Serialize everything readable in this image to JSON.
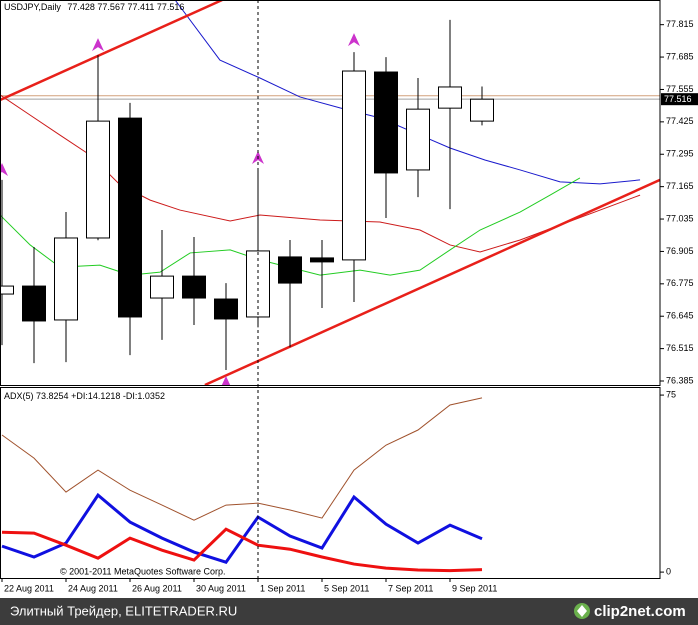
{
  "chart_data": [
    {
      "type": "candlestick",
      "title": "USDJPY,Daily",
      "categories": [
        "22 Aug 2011",
        null,
        "24 Aug 2011",
        null,
        "26 Aug 2011",
        null,
        "30 Aug 2011",
        null,
        "1 Sep 2011",
        null,
        "5 Sep 2011",
        null,
        "7 Sep 2011",
        null,
        "9 Sep 2011",
        null
      ],
      "open": [
        76.734,
        76.766,
        76.63,
        76.959,
        77.44,
        76.718,
        76.806,
        76.714,
        76.642,
        76.883,
        76.879,
        76.871,
        77.625,
        77.232,
        77.48,
        77.428
      ],
      "high": [
        77.192,
        76.923,
        77.063,
        77.693,
        77.501,
        76.991,
        76.963,
        76.778,
        77.232,
        76.951,
        76.951,
        77.705,
        77.685,
        77.601,
        77.834,
        77.567
      ],
      "low": [
        76.529,
        76.457,
        76.461,
        76.95,
        76.489,
        76.55,
        76.61,
        76.429,
        76.6,
        76.521,
        76.678,
        76.702,
        77.039,
        77.123,
        77.075,
        77.411
      ],
      "close": [
        76.766,
        76.626,
        76.959,
        77.428,
        76.642,
        76.806,
        76.718,
        76.634,
        76.907,
        76.778,
        76.863,
        77.629,
        77.22,
        77.476,
        77.565,
        77.516
      ],
      "up_color": "#ffffff",
      "down_color": "#000000",
      "edge_color": "#000000",
      "ylim": [
        76.369,
        77.914
      ],
      "yticks": [
        76.385,
        76.515,
        76.645,
        76.775,
        76.905,
        77.035,
        77.165,
        77.295,
        77.425,
        77.555,
        77.685,
        77.815
      ],
      "overlays": [
        {
          "color": "#1a1acc",
          "width": 1,
          "x": [
            5.41,
            6.81,
            8.06,
            9.31,
            10.56,
            11.81,
            13.06,
            14,
            15.09,
            16.19,
            17.44,
            18.69,
            19.94
          ],
          "values": [
            77.914,
            77.673,
            77.601,
            77.525,
            77.481,
            77.441,
            77.372,
            77.32,
            77.272,
            77.232,
            77.184,
            77.176,
            77.192
          ]
        },
        {
          "color": "#cc1a1a",
          "width": 1,
          "x": [
            -0.06,
            0.88,
            1.81,
            2.75,
            3.69,
            4.63,
            5.56,
            7.13,
            8.06,
            9.94,
            11.81,
            13.06,
            14,
            14.94,
            16.19,
            17.44,
            18.69,
            19.94
          ],
          "values": [
            77.533,
            77.452,
            77.372,
            77.292,
            77.172,
            77.111,
            77.071,
            77.027,
            77.051,
            77.031,
            77.023,
            76.991,
            76.931,
            76.903,
            76.951,
            77.011,
            77.071,
            77.131
          ]
        },
        {
          "color": "#22cc22",
          "width": 1,
          "x": [
            -0.06,
            0.88,
            1.81,
            3.06,
            4,
            4.94,
            5.88,
            7.13,
            8.06,
            9.94,
            11.19,
            12.13,
            13.06,
            14,
            14.94,
            16.19,
            17.13,
            18.06
          ],
          "values": [
            77.051,
            76.931,
            76.842,
            76.85,
            76.81,
            76.822,
            76.899,
            76.911,
            76.871,
            76.81,
            76.83,
            76.81,
            76.83,
            76.911,
            76.991,
            77.063,
            77.131,
            77.2
          ]
        },
        {
          "color": "#e8201a",
          "width": 2.5,
          "x": [
            -0.06,
            6.88
          ],
          "values": [
            77.513,
            77.914
          ]
        },
        {
          "color": "#e8201a",
          "width": 2.5,
          "x": [
            6.34,
            20.56
          ],
          "values": [
            76.369,
            77.192
          ]
        }
      ],
      "markers": {
        "color": "#cc33cc",
        "x": [
          0,
          3,
          7,
          8,
          11
        ],
        "values": [
          77.232,
          77.733,
          76.377,
          77.28,
          77.753
        ]
      },
      "hlines": [
        {
          "value": 77.53,
          "color": "#d2a07c"
        },
        {
          "value": 77.516,
          "color": "#a0a0a0"
        }
      ],
      "bid": 77.516
    },
    {
      "type": "line",
      "title": "ADX(5)",
      "series": [
        {
          "color": "#a0522d",
          "width": 1,
          "values": [
            58.1,
            48.3,
            33.9,
            43.2,
            34.7,
            28.4,
            22.0,
            28.4,
            29.2,
            26.3,
            22.9,
            43.2,
            53.8,
            60.2,
            70.8,
            73.8254
          ]
        },
        {
          "name": "+DI:",
          "color": "#1010e0",
          "width": 3,
          "values": [
            11.0,
            6.4,
            12.3,
            32.6,
            21.2,
            14.4,
            8.5,
            4.2,
            23.3,
            15.3,
            10.2,
            31.8,
            20.3,
            12.3,
            19.9,
            14.1218
          ]
        },
        {
          "name": "-DI:",
          "color": "#ee1010",
          "width": 3,
          "values": [
            16.9,
            16.5,
            11.4,
            5.9,
            14.4,
            9.3,
            5.1,
            18.2,
            11.4,
            9.7,
            6.4,
            3.4,
            1.7,
            0.9,
            0.6,
            1.0352
          ]
        }
      ],
      "ylim": [
        -2.5,
        78.0
      ],
      "yticks": [
        0,
        75
      ],
      "copyright": "© 2001-2011 MetaQuotes Software Corp."
    }
  ],
  "footer": {
    "text": "Элитный Трейдер, ELITETRADER.RU",
    "logo": "clip2net.com"
  }
}
